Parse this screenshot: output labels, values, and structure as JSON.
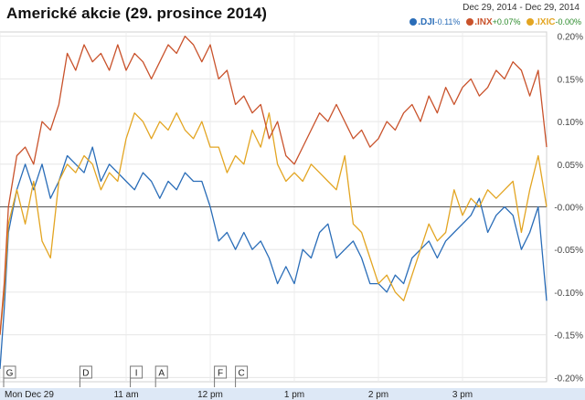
{
  "chart_data": {
    "type": "line",
    "title": "Americké akcie (29. prosince 2014)",
    "date_range": "Dec 29, 2014  -  Dec 29, 2014",
    "ylim": [
      -0.205,
      0.205
    ],
    "y_ticks": [
      0.2,
      0.15,
      0.1,
      0.05,
      0.0,
      -0.05,
      -0.1,
      -0.15,
      -0.2
    ],
    "y_tick_labels": [
      "0.20%",
      "0.15%",
      "0.10%",
      "0.05%",
      "-0.00%",
      "-0.05%",
      "-0.10%",
      "-0.15%",
      "-0.20%"
    ],
    "x_range": [
      9.5,
      16.0
    ],
    "x_ticks": [
      {
        "x": 9.5,
        "label": "Mon Dec 29"
      },
      {
        "x": 11.0,
        "label": "11 am"
      },
      {
        "x": 12.0,
        "label": "12 pm"
      },
      {
        "x": 13.0,
        "label": "1 pm"
      },
      {
        "x": 14.0,
        "label": "2 pm"
      },
      {
        "x": 15.0,
        "label": "3 pm"
      }
    ],
    "event_flags": [
      {
        "x": 9.45,
        "label": "G"
      },
      {
        "x": 10.45,
        "label": "D"
      },
      {
        "x": 11.05,
        "label": "I"
      },
      {
        "x": 11.35,
        "label": "A"
      },
      {
        "x": 12.05,
        "label": "F"
      },
      {
        "x": 12.3,
        "label": "C"
      }
    ],
    "series": [
      {
        "name": ".DJI",
        "change": "-0.11%",
        "color": "#2a6db8",
        "x": [
          9.5,
          9.55,
          9.6,
          9.7,
          9.8,
          9.9,
          10.0,
          10.1,
          10.2,
          10.3,
          10.4,
          10.5,
          10.6,
          10.7,
          10.8,
          10.9,
          11.0,
          11.1,
          11.2,
          11.3,
          11.4,
          11.5,
          11.6,
          11.7,
          11.8,
          11.9,
          12.0,
          12.1,
          12.2,
          12.3,
          12.4,
          12.5,
          12.6,
          12.7,
          12.8,
          12.9,
          13.0,
          13.1,
          13.2,
          13.3,
          13.4,
          13.5,
          13.6,
          13.7,
          13.8,
          13.9,
          14.0,
          14.1,
          14.2,
          14.3,
          14.4,
          14.5,
          14.6,
          14.7,
          14.8,
          14.9,
          15.0,
          15.1,
          15.2,
          15.3,
          15.4,
          15.5,
          15.6,
          15.7,
          15.8,
          15.9,
          16.0
        ],
        "values": [
          -0.19,
          -0.12,
          -0.03,
          0.02,
          0.05,
          0.02,
          0.05,
          0.01,
          0.03,
          0.06,
          0.05,
          0.04,
          0.07,
          0.03,
          0.05,
          0.04,
          0.03,
          0.02,
          0.04,
          0.03,
          0.01,
          0.03,
          0.02,
          0.04,
          0.03,
          0.03,
          0.0,
          -0.04,
          -0.03,
          -0.05,
          -0.03,
          -0.05,
          -0.04,
          -0.06,
          -0.09,
          -0.07,
          -0.09,
          -0.05,
          -0.06,
          -0.03,
          -0.02,
          -0.06,
          -0.05,
          -0.04,
          -0.06,
          -0.09,
          -0.09,
          -0.1,
          -0.08,
          -0.09,
          -0.06,
          -0.05,
          -0.04,
          -0.06,
          -0.04,
          -0.03,
          -0.02,
          -0.01,
          0.01,
          -0.03,
          -0.01,
          0.0,
          -0.01,
          -0.05,
          -0.03,
          0.0,
          -0.11
        ]
      },
      {
        "name": ".INX",
        "change": "+0.07%",
        "color": "#c9522b",
        "x": [
          9.5,
          9.55,
          9.6,
          9.7,
          9.8,
          9.9,
          10.0,
          10.1,
          10.2,
          10.3,
          10.4,
          10.5,
          10.6,
          10.7,
          10.8,
          10.9,
          11.0,
          11.1,
          11.2,
          11.3,
          11.4,
          11.5,
          11.6,
          11.7,
          11.8,
          11.9,
          12.0,
          12.1,
          12.2,
          12.3,
          12.4,
          12.5,
          12.6,
          12.7,
          12.8,
          12.9,
          13.0,
          13.1,
          13.2,
          13.3,
          13.4,
          13.5,
          13.6,
          13.7,
          13.8,
          13.9,
          14.0,
          14.1,
          14.2,
          14.3,
          14.4,
          14.5,
          14.6,
          14.7,
          14.8,
          14.9,
          15.0,
          15.1,
          15.2,
          15.3,
          15.4,
          15.5,
          15.6,
          15.7,
          15.8,
          15.9,
          16.0
        ],
        "values": [
          -0.15,
          -0.09,
          0.0,
          0.06,
          0.07,
          0.05,
          0.1,
          0.09,
          0.12,
          0.18,
          0.16,
          0.19,
          0.17,
          0.18,
          0.16,
          0.19,
          0.16,
          0.18,
          0.17,
          0.15,
          0.17,
          0.19,
          0.18,
          0.2,
          0.19,
          0.17,
          0.19,
          0.15,
          0.16,
          0.12,
          0.13,
          0.11,
          0.12,
          0.08,
          0.1,
          0.06,
          0.05,
          0.07,
          0.09,
          0.11,
          0.1,
          0.12,
          0.1,
          0.08,
          0.09,
          0.07,
          0.08,
          0.1,
          0.09,
          0.11,
          0.12,
          0.1,
          0.13,
          0.11,
          0.14,
          0.12,
          0.14,
          0.15,
          0.13,
          0.14,
          0.16,
          0.15,
          0.17,
          0.16,
          0.13,
          0.16,
          0.07
        ]
      },
      {
        "name": ".IXIC",
        "change": "-0.00%",
        "color": "#e3a522",
        "x": [
          9.5,
          9.55,
          9.6,
          9.7,
          9.8,
          9.9,
          10.0,
          10.1,
          10.2,
          10.3,
          10.4,
          10.5,
          10.6,
          10.7,
          10.8,
          10.9,
          11.0,
          11.1,
          11.2,
          11.3,
          11.4,
          11.5,
          11.6,
          11.7,
          11.8,
          11.9,
          12.0,
          12.1,
          12.2,
          12.3,
          12.4,
          12.5,
          12.6,
          12.7,
          12.8,
          12.9,
          13.0,
          13.1,
          13.2,
          13.3,
          13.4,
          13.5,
          13.6,
          13.7,
          13.8,
          13.9,
          14.0,
          14.1,
          14.2,
          14.3,
          14.4,
          14.5,
          14.6,
          14.7,
          14.8,
          14.9,
          15.0,
          15.1,
          15.2,
          15.3,
          15.4,
          15.5,
          15.6,
          15.7,
          15.8,
          15.9,
          16.0
        ],
        "values": [
          -0.15,
          -0.1,
          -0.02,
          0.02,
          -0.02,
          0.03,
          -0.04,
          -0.06,
          0.03,
          0.05,
          0.04,
          0.06,
          0.05,
          0.02,
          0.04,
          0.03,
          0.08,
          0.11,
          0.1,
          0.08,
          0.1,
          0.09,
          0.11,
          0.09,
          0.08,
          0.1,
          0.07,
          0.07,
          0.04,
          0.06,
          0.05,
          0.09,
          0.07,
          0.11,
          0.05,
          0.03,
          0.04,
          0.03,
          0.05,
          0.04,
          0.03,
          0.02,
          0.06,
          -0.02,
          -0.03,
          -0.06,
          -0.09,
          -0.08,
          -0.1,
          -0.11,
          -0.08,
          -0.05,
          -0.02,
          -0.04,
          -0.03,
          0.02,
          -0.01,
          0.01,
          0.0,
          0.02,
          0.01,
          0.02,
          0.03,
          -0.03,
          0.02,
          0.06,
          -0.0
        ]
      }
    ]
  }
}
